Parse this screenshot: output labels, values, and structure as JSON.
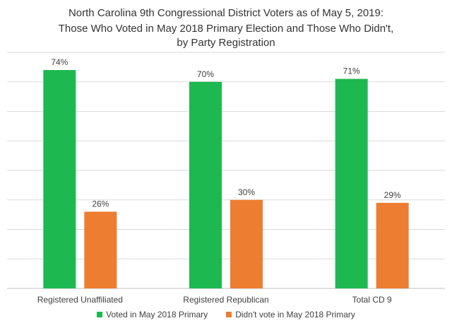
{
  "chart_data": {
    "type": "bar",
    "title_lines": [
      "North Carolina 9th Congressional District Voters as of May 5, 2019:",
      "Those Who Voted in May 2018 Primary Election and Those Who Didn't,",
      "by Party Registration"
    ],
    "categories": [
      "Registered Unaffiliated",
      "Registered Republican",
      "Total CD 9"
    ],
    "series": [
      {
        "name": "Voted in May 2018 Primary",
        "values": [
          74,
          70,
          71
        ],
        "labels": [
          "74%",
          "70%",
          "71%"
        ],
        "color": "#1eb850"
      },
      {
        "name": "Didn't vote in May 2018 Primary",
        "values": [
          26,
          30,
          29
        ],
        "labels": [
          "26%",
          "30%",
          "29%"
        ],
        "color": "#ed7d31"
      }
    ],
    "ylim": [
      0,
      80
    ],
    "gridlines": true,
    "legend_position": "bottom"
  }
}
